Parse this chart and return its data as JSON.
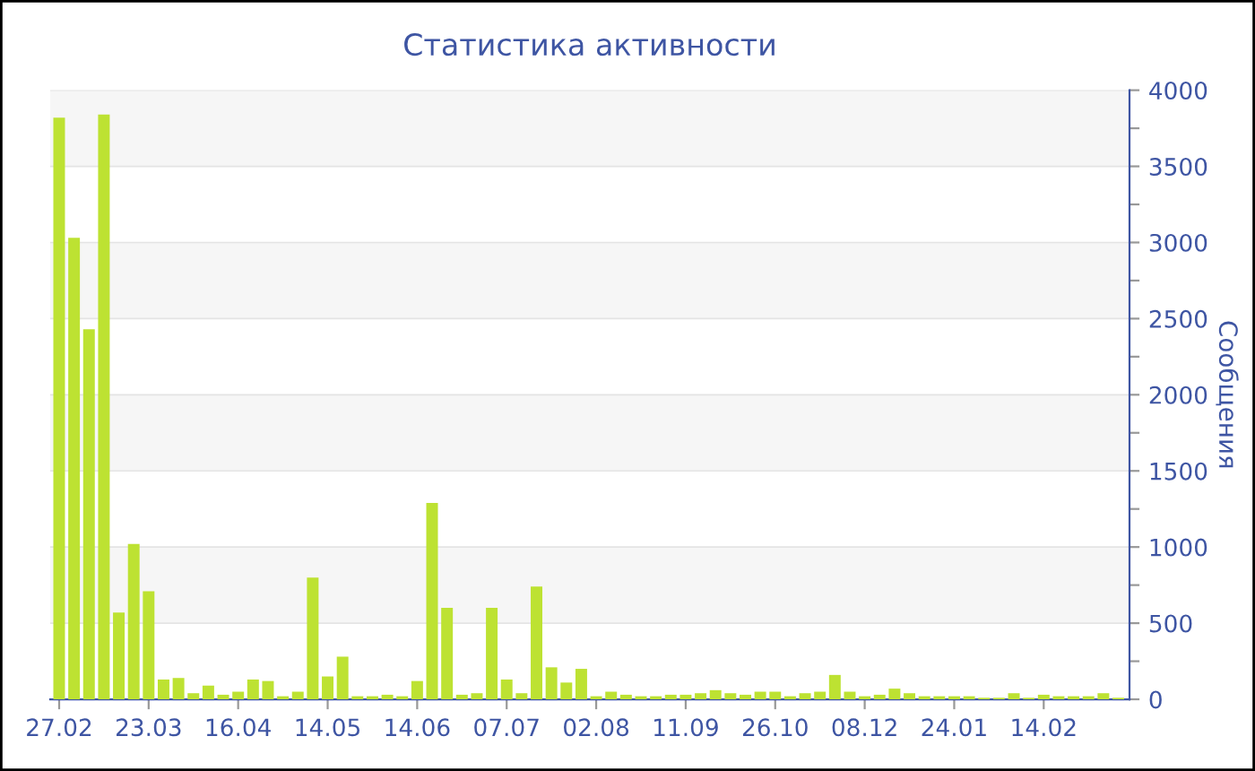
{
  "chart_data": {
    "type": "bar",
    "title": "Статистика активности",
    "ylabel": "Сообщения",
    "categories": [
      "27.02",
      null,
      null,
      null,
      null,
      null,
      "23.03",
      null,
      null,
      null,
      null,
      null,
      "16.04",
      null,
      null,
      null,
      null,
      null,
      "14.05",
      null,
      null,
      null,
      null,
      null,
      "14.06",
      null,
      null,
      null,
      null,
      null,
      "07.07",
      null,
      null,
      null,
      null,
      null,
      "02.08",
      null,
      null,
      null,
      null,
      null,
      "11.09",
      null,
      null,
      null,
      null,
      null,
      "26.10",
      null,
      null,
      null,
      null,
      null,
      "08.12",
      null,
      null,
      null,
      null,
      null,
      "24.01",
      null,
      null,
      null,
      null,
      null,
      "14.02",
      null,
      null,
      null,
      null,
      null
    ],
    "values": [
      3820,
      3030,
      2430,
      3840,
      570,
      1020,
      710,
      130,
      140,
      40,
      90,
      30,
      50,
      130,
      120,
      20,
      50,
      800,
      150,
      280,
      20,
      20,
      30,
      20,
      120,
      1290,
      600,
      30,
      40,
      600,
      130,
      40,
      740,
      210,
      110,
      200,
      20,
      50,
      30,
      20,
      20,
      30,
      30,
      40,
      60,
      40,
      30,
      50,
      50,
      20,
      40,
      50,
      160,
      50,
      20,
      30,
      70,
      40,
      20,
      20,
      20,
      20,
      10,
      10,
      40,
      10,
      30,
      20,
      20,
      20,
      40,
      10
    ],
    "color": "#bde232",
    "ylim": [
      0,
      4000
    ],
    "yticks": [
      0,
      {
        "value": 250,
        "label": null
      },
      500,
      {
        "value": 750,
        "label": null
      },
      1000,
      {
        "value": 1250,
        "label": null
      },
      1500,
      {
        "value": 1750,
        "label": null
      },
      2000,
      {
        "value": 2250,
        "label": null
      },
      2500,
      {
        "value": 2750,
        "label": null
      },
      3000,
      {
        "value": 3250,
        "label": null
      },
      3500,
      {
        "value": 3750,
        "label": null
      },
      4000
    ],
    "grid": "y"
  }
}
